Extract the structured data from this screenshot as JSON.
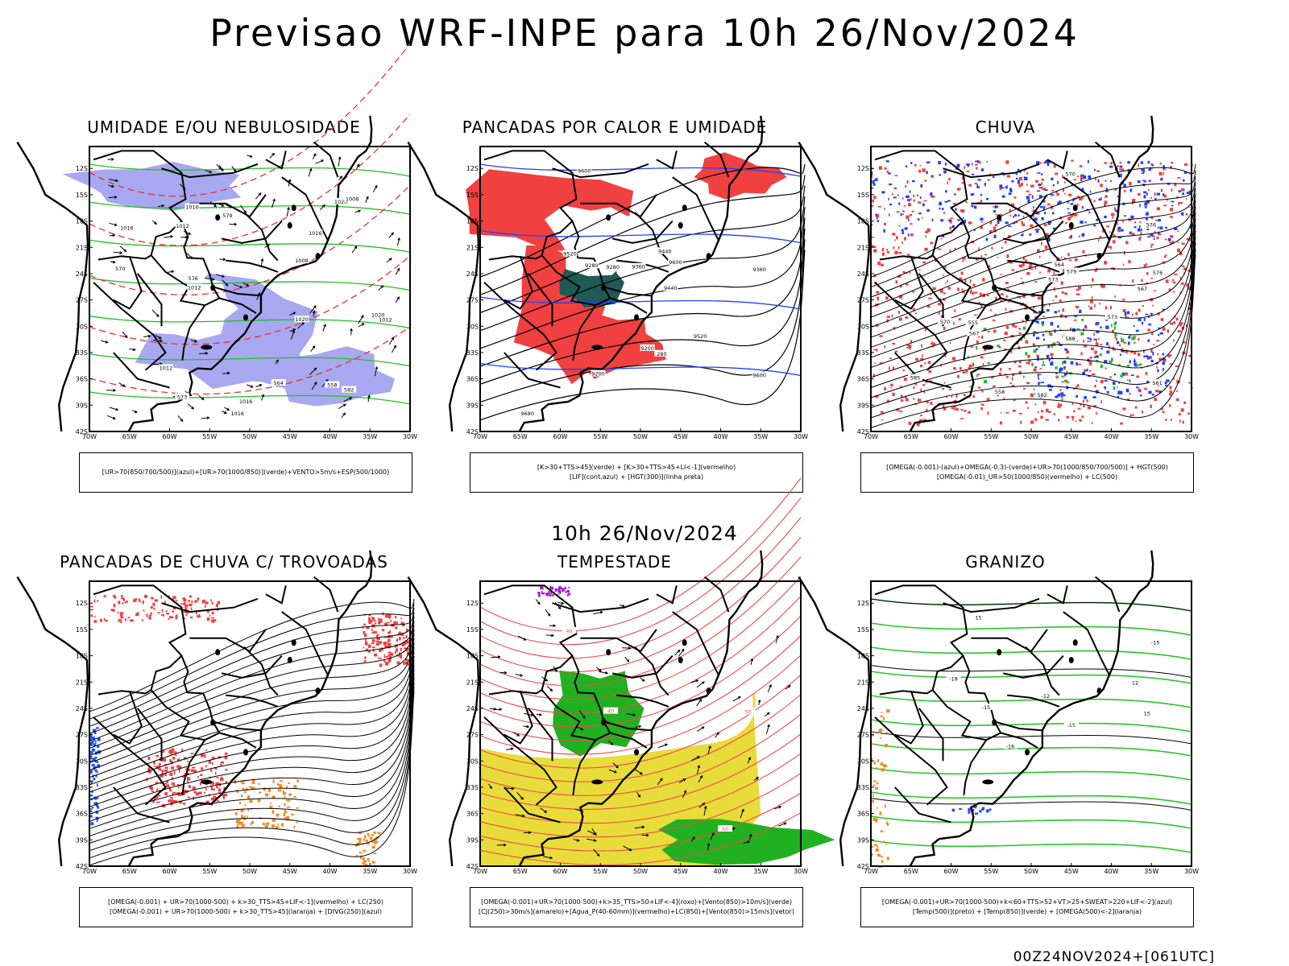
{
  "title": "Previsao WRF-INPE  para 10h 26/Nov/2024",
  "mid_title": "10h 26/Nov/2024",
  "footer": "00Z24NOV2024+[061UTC]",
  "axes": {
    "lat_labels": [
      "12S",
      "15S",
      "18S",
      "21S",
      "24S",
      "27S",
      "30S",
      "33S",
      "36S",
      "39S",
      "42S"
    ],
    "lon_labels": [
      "70W",
      "65W",
      "60W",
      "55W",
      "50W",
      "45W",
      "40W",
      "35W",
      "30W"
    ]
  },
  "panels": [
    {
      "id": "umidade",
      "title": "UMIDADE E/OU NEBULOSIDADE",
      "caption": [
        "[UR>70(850/700/500)](azul)+[UR>70(1000/850)](verde)+VENTO>5m/s+ESP(500/1000)"
      ],
      "contours": [
        "1016",
        "1012",
        "1008",
        "1016",
        "1020",
        "1016",
        "1020",
        "1012",
        "1008",
        "1012",
        "1020",
        "1016",
        "1016",
        "1012",
        "570",
        "573",
        "576",
        "579",
        "582",
        "564",
        "558"
      ],
      "colors": {
        "blue": "#a8a8f0",
        "green": "#22c022",
        "red": "#e83030"
      }
    },
    {
      "id": "pancadas",
      "title": "PANCADAS POR CALOR E UMIDADE",
      "caption": [
        "[K>30+TTS>45](verde) + [K>30+TTS>45+LI<-1](vermelho)",
        "[LIF](cont.azul) + [HGT(300)](linha preta)"
      ],
      "contours": [
        "9680",
        "9600",
        "9600",
        "9520",
        "9520",
        "9600",
        "9440",
        "9360",
        "9280",
        "9200",
        "9440",
        "9360",
        "9280",
        "9200",
        "280"
      ],
      "colors": {
        "red": "#f04040",
        "teal": "#1f5a55",
        "blue": "#2040ff"
      }
    },
    {
      "id": "chuva",
      "title": "CHUVA",
      "caption": [
        "[OMEGA(-0.001)-(azul)+OMEGA(-0.3)-(verde)+UR>70(1000/850/700/500)] + HGT(500)",
        "[OMEGA(-0.01)_UR>50(1000/850)(vermelho) + LC(500)"
      ],
      "contours": [
        "588",
        "585",
        "582",
        "579",
        "576",
        "573",
        "570",
        "567",
        "564",
        "561",
        "558",
        "555",
        "576",
        "573",
        "570",
        "567"
      ],
      "colors": {
        "red": "#f04040",
        "blue": "#2040ff",
        "green": "#20c020"
      }
    },
    {
      "id": "trovoadas",
      "title": "PANCADAS DE CHUVA C/ TROVOADAS",
      "caption": [
        "[OMEGA(-0.001) + UR>70(1000-500) + k>30_TTS>45+LIF<-1](vermelho) + LC(250)",
        "[OMEGA(-0.001) + UR>70(1000-500) + k>30_TTS>45](laranja) + [DIVG(250)](azul)"
      ],
      "contours": [],
      "colors": {
        "red": "#f04040",
        "orange": "#f08a20",
        "blue": "#2050ff"
      }
    },
    {
      "id": "tempestade",
      "title": "TEMPESTADE",
      "caption": [
        "[OMEGA(-0.001)+UR>70(1000-500)+k>35_TTS>50+LIF<-4](roxo)+[Vento(850)>10m/s](verde)",
        "[CJ(250)>30m/s](amarelo)+[Agua_P(40-60mm)](vermelho)+LC(850)+[Vento(850)>15m/s](vetor)"
      ],
      "contours": [
        "40",
        "50",
        "40",
        "50"
      ],
      "colors": {
        "yellow": "#e8dc3a",
        "green": "#20b020",
        "red": "#f04a4a",
        "purple": "#a020c0"
      }
    },
    {
      "id": "granizo",
      "title": "GRANIZO",
      "caption": [
        "[OMEGA(-0.001)+UR>70(1000-500)+k<60+TTS>52+VT>25+SWEAT>220+LIF<-2](azul)",
        "[Temp(500)](preto) + [Temp(850)](verde) + [OMEGA(500)<-2](laranja)"
      ],
      "contours": [
        "-15",
        "-18",
        "-16",
        "-15",
        "-12",
        "-15",
        "15",
        "12",
        "15"
      ],
      "colors": {
        "green": "#28c828",
        "orange": "#f08a20",
        "blue": "#2050ff"
      }
    }
  ]
}
